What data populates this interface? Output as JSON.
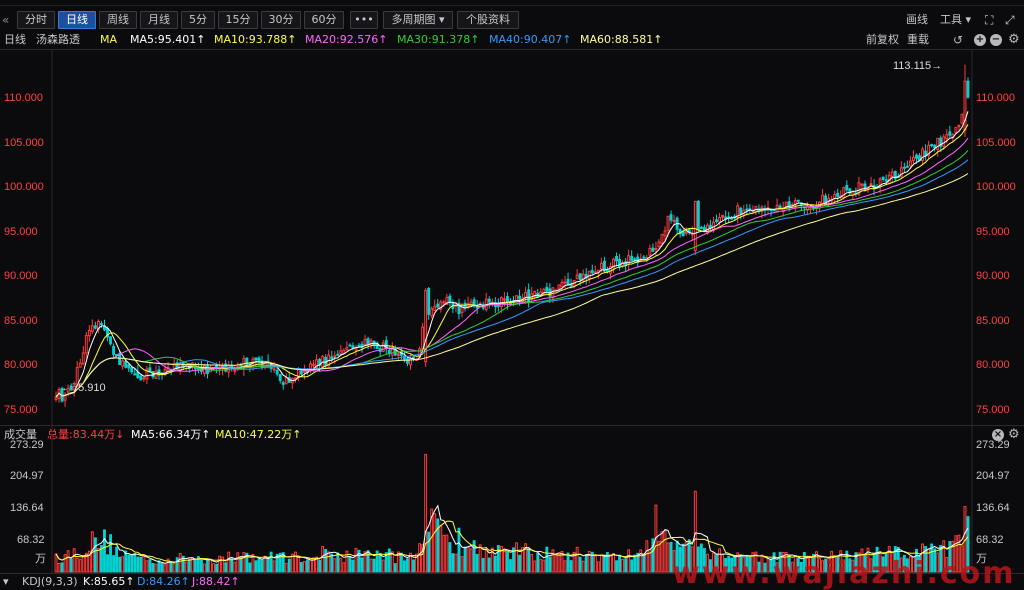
{
  "toolbar": {
    "collapse_glyph": "«",
    "buttons": [
      "分时",
      "日线",
      "周线",
      "月线",
      "5分",
      "15分",
      "30分",
      "60分",
      "•••",
      "多周期图 ▾",
      "个股资料"
    ],
    "active_index": 1,
    "draw_line": "画线",
    "tools": "工具 ▾",
    "expand_glyph": "⛶",
    "resize_glyph": "⤢"
  },
  "info": {
    "period": "日线",
    "stock_name": "汤森路透",
    "ma_label": "MA",
    "ma5": "MA5:95.401↑",
    "ma10": "MA10:93.788↑",
    "ma20": "MA20:92.576↑",
    "ma30": "MA30:91.378↑",
    "ma40": "MA40:90.407↑",
    "ma60": "MA60:88.581↑",
    "adjust": "前复权",
    "overlay": "重载"
  },
  "colors": {
    "up": "#ff3b3b",
    "down": "#00d2d2",
    "ma5": "#ffffff",
    "ma10": "#ffff3c",
    "ma20": "#ff66ff",
    "ma30": "#33cc33",
    "ma40": "#3399ff",
    "ma60": "#ffff99",
    "price_axis": "#ff4040"
  },
  "price_axis": {
    "ticks": [
      "110.000",
      "105.000",
      "100.000",
      "95.000",
      "90.000",
      "85.000",
      "80.000",
      "75.000"
    ]
  },
  "annotations": {
    "high": "113.115→",
    "low": "←75.910"
  },
  "volume": {
    "title": "成交量",
    "total": "总量:83.44万↓",
    "ma5": "MA5:66.34万↑",
    "ma10": "MA10:47.22万↑",
    "ticks": [
      "273.29",
      "204.97",
      "136.64",
      "68.32"
    ],
    "unit": "万"
  },
  "kdj": {
    "title": "KDJ(9,3,3)",
    "k": "K:85.65↑",
    "d": "D:84.26↑",
    "j": "J:88.42↑",
    "collapse_glyph": "▾"
  },
  "watermark": "www.wajiazhi.com",
  "chart_data": {
    "type": "candlestick",
    "price_range": [
      73.5,
      115.5
    ],
    "volume_range": [
      0,
      273.29
    ],
    "volume_unit": "万",
    "control_points": [
      [
        0,
        77.0,
        30
      ],
      [
        3,
        76.5,
        35
      ],
      [
        6,
        78.0,
        40
      ],
      [
        10,
        83.0,
        55
      ],
      [
        14,
        85.0,
        70
      ],
      [
        18,
        82.0,
        60
      ],
      [
        22,
        80.0,
        40
      ],
      [
        28,
        79.0,
        30
      ],
      [
        35,
        79.5,
        25
      ],
      [
        45,
        80.0,
        30
      ],
      [
        55,
        79.5,
        28
      ],
      [
        62,
        80.5,
        35
      ],
      [
        70,
        80.0,
        30
      ],
      [
        75,
        78.0,
        35
      ],
      [
        80,
        79.5,
        30
      ],
      [
        88,
        80.5,
        40
      ],
      [
        95,
        81.5,
        35
      ],
      [
        102,
        82.5,
        40
      ],
      [
        110,
        82.0,
        35
      ],
      [
        115,
        81.0,
        30
      ],
      [
        119,
        80.5,
        40
      ],
      [
        122,
        86.0,
        120
      ],
      [
        127,
        87.5,
        80
      ],
      [
        133,
        86.5,
        60
      ],
      [
        140,
        87.0,
        50
      ],
      [
        150,
        87.5,
        45
      ],
      [
        160,
        88.0,
        40
      ],
      [
        168,
        89.0,
        35
      ],
      [
        176,
        90.5,
        40
      ],
      [
        184,
        91.5,
        30
      ],
      [
        192,
        92.0,
        40
      ],
      [
        198,
        93.5,
        70
      ],
      [
        202,
        96.5,
        90
      ],
      [
        208,
        94.5,
        60
      ],
      [
        214,
        95.0,
        45
      ],
      [
        220,
        96.5,
        40
      ],
      [
        228,
        98.0,
        35
      ],
      [
        238,
        98.0,
        30
      ],
      [
        248,
        98.0,
        30
      ],
      [
        256,
        99.0,
        35
      ],
      [
        264,
        100.0,
        35
      ],
      [
        272,
        100.5,
        40
      ],
      [
        280,
        102.0,
        40
      ],
      [
        288,
        104.5,
        45
      ],
      [
        294,
        105.5,
        50
      ],
      [
        298,
        106.5,
        60
      ],
      [
        301,
        111.0,
        140
      ]
    ]
  }
}
